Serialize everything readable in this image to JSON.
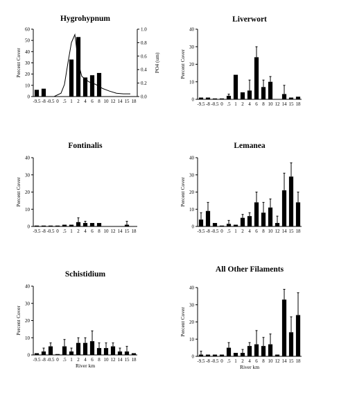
{
  "river_km_categories": [
    "-9.5",
    "-8",
    "-0.5",
    "0",
    ".5",
    "1",
    "2",
    "4",
    "6",
    "8",
    "10",
    "12",
    "14",
    "15",
    "18"
  ],
  "chart_data": [
    {
      "type": "bar",
      "title": "Hygrohypnum",
      "ylabel": "Percent Cover",
      "y2label": "PO4 (um)",
      "xlabel": "",
      "ylim": [
        0,
        60
      ],
      "yticks": [
        "0",
        "10",
        "20",
        "30",
        "40",
        "50",
        "60"
      ],
      "y2lim": [
        0,
        1.0
      ],
      "y2ticks": [
        "0.0",
        "0.2",
        "0.4",
        "0.6",
        "0.8",
        "1.0"
      ],
      "values": [
        6,
        7,
        0,
        0,
        0,
        33,
        53,
        17,
        19,
        21,
        0,
        0,
        0,
        0,
        0
      ],
      "errors": [
        0,
        0,
        0,
        0,
        0,
        0,
        0,
        0,
        0,
        0,
        0,
        0,
        0,
        0,
        0
      ],
      "line": {
        "name": "PO4",
        "x_positions": [
          2,
          3,
          4,
          4.5,
          5,
          5.5,
          6,
          6.5,
          7,
          8,
          9,
          10,
          11,
          12,
          13,
          14
        ],
        "values": [
          0.0,
          0.0,
          0.05,
          0.18,
          0.5,
          0.8,
          0.92,
          0.5,
          0.3,
          0.22,
          0.18,
          0.12,
          0.08,
          0.05,
          0.04,
          0.04
        ]
      }
    },
    {
      "type": "bar",
      "title": "Liverwort",
      "ylabel": "Percent Cover",
      "xlabel": "",
      "ylim": [
        0,
        40
      ],
      "yticks": [
        "0",
        "10",
        "20",
        "30",
        "40"
      ],
      "values": [
        1,
        1,
        0.5,
        0.5,
        2,
        14,
        4,
        5,
        24,
        7,
        10,
        0,
        3,
        1,
        1.5
      ],
      "errors": [
        0,
        0,
        0,
        0,
        1,
        0,
        0,
        6,
        6,
        4,
        3,
        0,
        5,
        0,
        0
      ]
    },
    {
      "type": "bar",
      "title": "Fontinalis",
      "ylabel": "Percent Cover",
      "xlabel": "",
      "ylim": [
        0,
        40
      ],
      "yticks": [
        "0",
        "10",
        "20",
        "30",
        "40"
      ],
      "values": [
        0.5,
        0.5,
        0.5,
        0.5,
        1,
        1,
        2.5,
        2,
        2,
        2,
        0,
        0,
        0,
        1,
        0
      ],
      "errors": [
        0,
        0,
        0,
        0,
        0,
        0,
        2.5,
        1,
        0,
        0,
        0,
        0,
        0,
        2,
        0
      ]
    },
    {
      "type": "bar",
      "title": "Lemanea",
      "ylabel": "Percent Cover",
      "xlabel": "",
      "ylim": [
        0,
        40
      ],
      "yticks": [
        "0",
        "10",
        "20",
        "30",
        "40"
      ],
      "values": [
        4,
        9,
        2,
        0.5,
        1.5,
        1,
        5,
        6,
        14,
        8,
        11,
        2,
        21,
        29,
        14
      ],
      "errors": [
        4,
        5,
        0,
        0,
        2,
        0,
        2,
        2,
        6,
        6,
        5,
        4,
        10,
        8,
        6
      ]
    },
    {
      "type": "bar",
      "title": "Schistidium",
      "ylabel": "Percent Cover",
      "xlabel": "River km",
      "ylim": [
        0,
        40
      ],
      "yticks": [
        "0",
        "10",
        "20",
        "30",
        "40"
      ],
      "values": [
        1,
        2,
        5,
        0.5,
        5,
        2,
        7,
        7,
        8,
        4,
        4,
        5,
        2,
        2,
        1
      ],
      "errors": [
        0,
        2,
        2,
        0,
        4,
        2,
        3,
        3,
        6,
        3,
        3,
        2,
        2,
        3,
        0
      ]
    },
    {
      "type": "bar",
      "title": "All Other Filaments",
      "ylabel": "Percent Cover",
      "xlabel": "River km",
      "ylim": [
        0,
        40
      ],
      "yticks": [
        "0",
        "10",
        "20",
        "30",
        "40"
      ],
      "values": [
        1,
        1,
        1,
        1,
        5,
        2,
        2,
        6,
        7,
        6,
        7,
        1,
        33,
        14,
        24
      ],
      "errors": [
        2,
        0,
        0,
        0,
        3,
        0,
        2,
        2,
        8,
        5,
        6,
        0,
        6,
        9,
        13
      ]
    }
  ]
}
